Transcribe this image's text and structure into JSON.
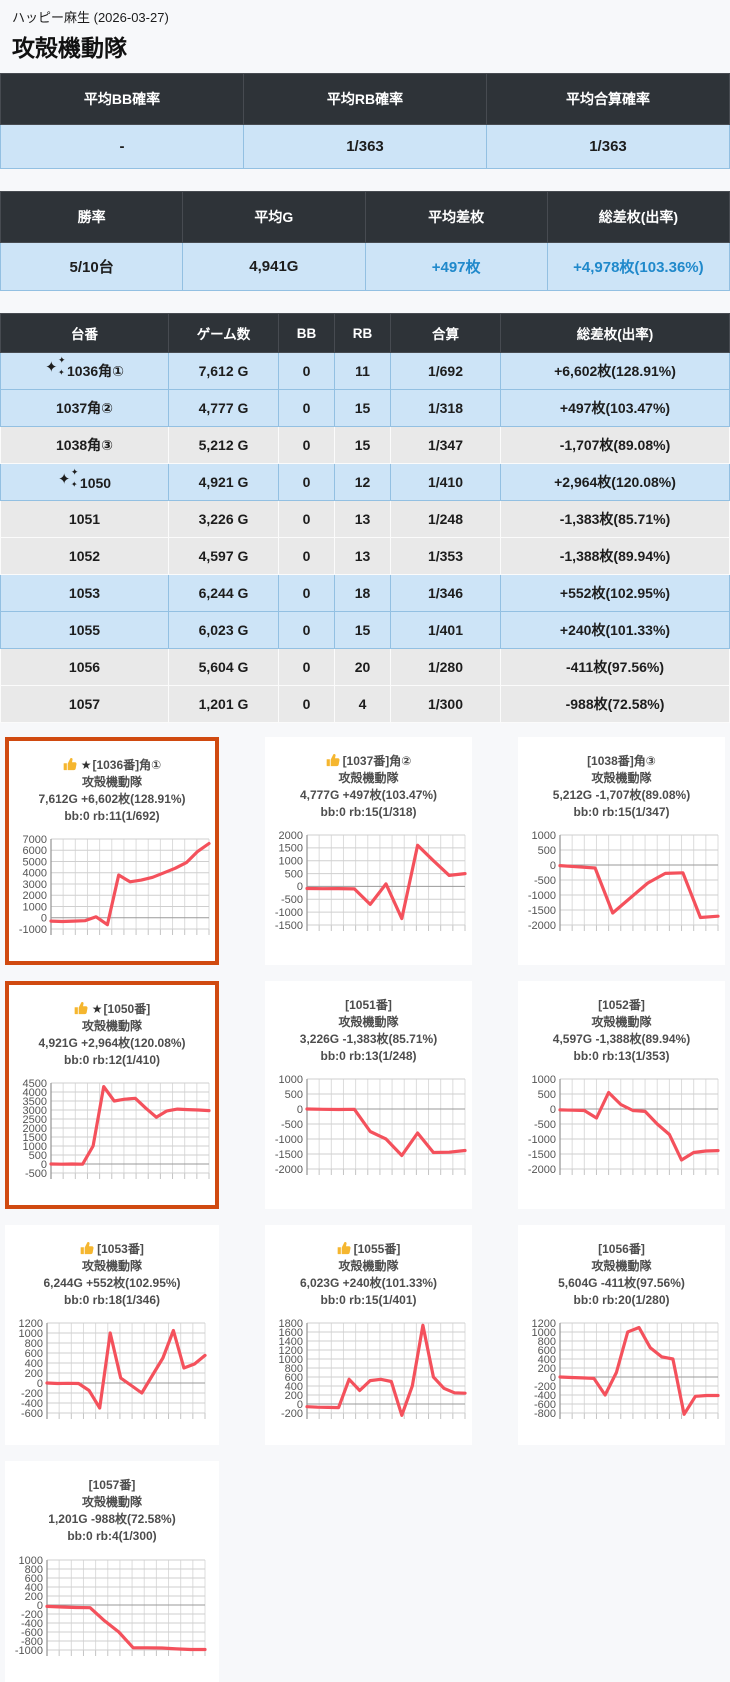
{
  "page": {
    "store_line": "ハッピー麻生 (2026-03-27)",
    "title": "攻殻機動隊"
  },
  "colors": {
    "header_bg": "#2e3338",
    "win_row_bg": "#cde4f7",
    "lose_row_bg": "#e9e9e9",
    "accent_blue": "#2089cb",
    "highlight_orange": "#d04a10",
    "line_red": "#f4515c",
    "thumb_yellow": "#f5b62f"
  },
  "summary_prob": {
    "headers": [
      "平均BB確率",
      "平均RB確率",
      "平均合算確率"
    ],
    "values": [
      "-",
      "1/363",
      "1/363"
    ]
  },
  "summary_stats": {
    "headers": [
      "勝率",
      "平均G",
      "平均差枚",
      "総差枚(出率)"
    ],
    "values": [
      "5/10台",
      "4,941G",
      "+497枚",
      "+4,978枚(103.36%)"
    ],
    "accent": [
      false,
      false,
      true,
      true
    ]
  },
  "machine_table": {
    "headers": [
      "台番",
      "ゲーム数",
      "BB",
      "RB",
      "合算",
      "総差枚(出率)"
    ],
    "rows": [
      {
        "sparkle": true,
        "num": "1036角①",
        "games": "7,612 G",
        "bb": "0",
        "rb": "11",
        "gassan": "1/692",
        "diff": "+6,602枚(128.91%)",
        "win": true
      },
      {
        "sparkle": false,
        "num": "1037角②",
        "games": "4,777 G",
        "bb": "0",
        "rb": "15",
        "gassan": "1/318",
        "diff": "+497枚(103.47%)",
        "win": true
      },
      {
        "sparkle": false,
        "num": "1038角③",
        "games": "5,212 G",
        "bb": "0",
        "rb": "15",
        "gassan": "1/347",
        "diff": "-1,707枚(89.08%)",
        "win": false
      },
      {
        "sparkle": true,
        "num": "1050",
        "games": "4,921 G",
        "bb": "0",
        "rb": "12",
        "gassan": "1/410",
        "diff": "+2,964枚(120.08%)",
        "win": true
      },
      {
        "sparkle": false,
        "num": "1051",
        "games": "3,226 G",
        "bb": "0",
        "rb": "13",
        "gassan": "1/248",
        "diff": "-1,383枚(85.71%)",
        "win": false
      },
      {
        "sparkle": false,
        "num": "1052",
        "games": "4,597 G",
        "bb": "0",
        "rb": "13",
        "gassan": "1/353",
        "diff": "-1,388枚(89.94%)",
        "win": false
      },
      {
        "sparkle": false,
        "num": "1053",
        "games": "6,244 G",
        "bb": "0",
        "rb": "18",
        "gassan": "1/346",
        "diff": "+552枚(102.95%)",
        "win": true
      },
      {
        "sparkle": false,
        "num": "1055",
        "games": "6,023 G",
        "bb": "0",
        "rb": "15",
        "gassan": "1/401",
        "diff": "+240枚(101.33%)",
        "win": true
      },
      {
        "sparkle": false,
        "num": "1056",
        "games": "5,604 G",
        "bb": "0",
        "rb": "20",
        "gassan": "1/280",
        "diff": "-411枚(97.56%)",
        "win": false
      },
      {
        "sparkle": false,
        "num": "1057",
        "games": "1,201 G",
        "bb": "0",
        "rb": "4",
        "gassan": "1/300",
        "diff": "-988枚(72.58%)",
        "win": false
      }
    ]
  },
  "chart_data": [
    {
      "type": "line",
      "thumb": true,
      "star": true,
      "highlighted": true,
      "machine_label": "[1036番]角①",
      "model": "攻殻機動隊",
      "stats_line": "7,612G +6,602枚(128.91%)",
      "bbrb_line": "bb:0 rb:11(1/692)",
      "y_max": 7000,
      "y_min": -1000,
      "y_step": 1000,
      "values": [
        -300,
        -330,
        -300,
        -260,
        80,
        -620,
        3800,
        3200,
        3350,
        3600,
        4000,
        4400,
        4900,
        5900,
        6602
      ]
    },
    {
      "type": "line",
      "thumb": true,
      "star": false,
      "highlighted": false,
      "machine_label": "[1037番]角②",
      "model": "攻殻機動隊",
      "stats_line": "4,777G +497枚(103.47%)",
      "bbrb_line": "bb:0 rb:15(1/318)",
      "y_max": 2000,
      "y_min": -1500,
      "y_step": 500,
      "values": [
        -80,
        -90,
        -85,
        -95,
        -700,
        100,
        -1250,
        1600,
        1000,
        430,
        497
      ]
    },
    {
      "type": "line",
      "thumb": false,
      "star": false,
      "highlighted": false,
      "machine_label": "[1038番]角③",
      "model": "攻殻機動隊",
      "stats_line": "5,212G -1,707枚(89.08%)",
      "bbrb_line": "bb:0 rb:15(1/347)",
      "y_max": 1000,
      "y_min": -2000,
      "y_step": 500,
      "values": [
        -20,
        -60,
        -100,
        -1600,
        -1100,
        -600,
        -280,
        -260,
        -1750,
        -1707
      ]
    },
    {
      "type": "line",
      "thumb": true,
      "star": true,
      "highlighted": true,
      "machine_label": "[1050番]",
      "model": "攻殻機動隊",
      "stats_line": "4,921G +2,964枚(120.08%)",
      "bbrb_line": "bb:0 rb:12(1/410)",
      "y_max": 4500,
      "y_min": -500,
      "y_step": 500,
      "values": [
        0,
        -10,
        0,
        -10,
        1000,
        4300,
        3500,
        3600,
        3650,
        3100,
        2600,
        2950,
        3050,
        3020,
        3000,
        2964
      ]
    },
    {
      "type": "line",
      "thumb": false,
      "star": false,
      "highlighted": false,
      "machine_label": "[1051番]",
      "model": "攻殻機動隊",
      "stats_line": "3,226G -1,383枚(85.71%)",
      "bbrb_line": "bb:0 rb:13(1/248)",
      "y_max": 1000,
      "y_min": -2000,
      "y_step": 500,
      "values": [
        0,
        -10,
        -15,
        -10,
        -750,
        -1000,
        -1550,
        -800,
        -1450,
        -1440,
        -1383
      ]
    },
    {
      "type": "line",
      "thumb": false,
      "star": false,
      "highlighted": false,
      "machine_label": "[1052番]",
      "model": "攻殻機動隊",
      "stats_line": "4,597G -1,388枚(89.94%)",
      "bbrb_line": "bb:0 rb:13(1/353)",
      "y_max": 1000,
      "y_min": -2000,
      "y_step": 500,
      "values": [
        -30,
        -40,
        -50,
        -300,
        550,
        150,
        -50,
        -80,
        -500,
        -850,
        -1700,
        -1450,
        -1400,
        -1388
      ]
    },
    {
      "type": "line",
      "thumb": true,
      "star": false,
      "highlighted": false,
      "machine_label": "[1053番]",
      "model": "攻殻機動隊",
      "stats_line": "6,244G +552枚(102.95%)",
      "bbrb_line": "bb:0 rb:18(1/346)",
      "y_max": 1200,
      "y_min": -600,
      "y_step": 200,
      "values": [
        0,
        -10,
        -5,
        -10,
        -150,
        -500,
        1000,
        100,
        -50,
        -200,
        150,
        500,
        1050,
        300,
        380,
        552
      ]
    },
    {
      "type": "line",
      "thumb": true,
      "star": false,
      "highlighted": false,
      "machine_label": "[1055番]",
      "model": "攻殻機動隊",
      "stats_line": "6,023G +240枚(101.33%)",
      "bbrb_line": "bb:0 rb:15(1/401)",
      "y_max": 1800,
      "y_min": -200,
      "y_step": 200,
      "values": [
        -60,
        -70,
        -75,
        -80,
        550,
        300,
        520,
        550,
        500,
        -250,
        400,
        1750,
        600,
        350,
        250,
        240
      ]
    },
    {
      "type": "line",
      "thumb": false,
      "star": false,
      "highlighted": false,
      "machine_label": "[1056番]",
      "model": "攻殻機動隊",
      "stats_line": "5,604G -411枚(97.56%)",
      "bbrb_line": "bb:0 rb:20(1/280)",
      "y_max": 1200,
      "y_min": -800,
      "y_step": 200,
      "values": [
        0,
        -10,
        -20,
        -30,
        -400,
        100,
        1000,
        1100,
        650,
        450,
        400,
        -830,
        -430,
        -410,
        -411
      ]
    },
    {
      "type": "line",
      "thumb": false,
      "star": false,
      "highlighted": false,
      "machine_label": "[1057番]",
      "model": "攻殻機動隊",
      "stats_line": "1,201G -988枚(72.58%)",
      "bbrb_line": "bb:0 rb:4(1/300)",
      "y_max": 1000,
      "y_min": -1000,
      "y_step": 200,
      "values": [
        -30,
        -45,
        -55,
        -60,
        -350,
        -600,
        -950,
        -950,
        -955,
        -975,
        -990,
        -988
      ]
    }
  ]
}
